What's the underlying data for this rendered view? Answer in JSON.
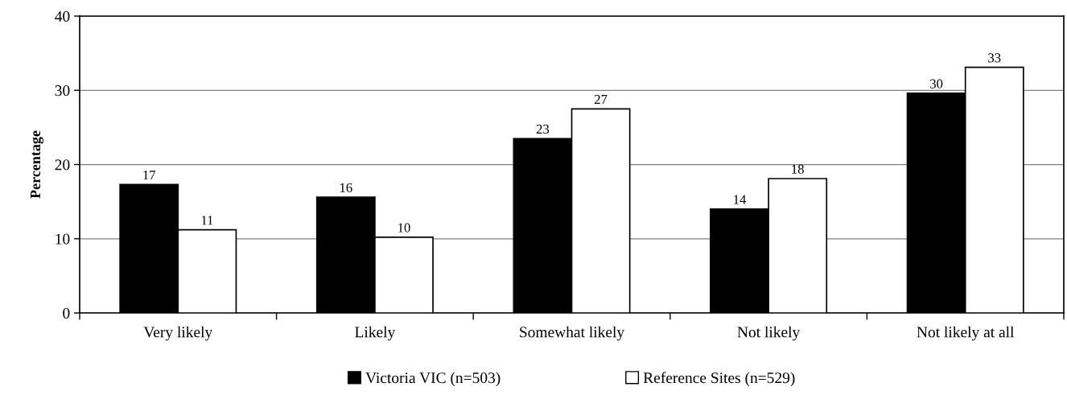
{
  "chart_data": {
    "type": "bar",
    "ylabel": "Percentage",
    "categories": [
      "Very likely",
      "Likely",
      "Somewhat likely",
      "Not likely",
      "Not likely at all"
    ],
    "series": [
      {
        "name": "Victoria VIC (n=503)",
        "color": "#000000",
        "values": [
          17.3,
          15.6,
          23.5,
          14.0,
          29.6
        ],
        "value_labels": [
          "17",
          "16",
          "23",
          "14",
          "30"
        ]
      },
      {
        "name": "Reference Sites (n=529)",
        "color": "#ffffff",
        "values": [
          11.2,
          10.2,
          27.5,
          18.1,
          33.1
        ],
        "value_labels": [
          "11",
          "10",
          "27",
          "18",
          "33"
        ]
      }
    ],
    "ylim": [
      0,
      40
    ],
    "yticks": [
      0,
      10,
      20,
      30,
      40
    ],
    "grid": "y",
    "legend": "bottom"
  }
}
